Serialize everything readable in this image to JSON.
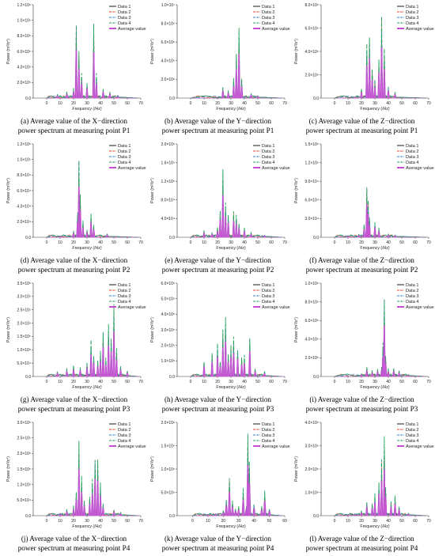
{
  "colors": {
    "data1": "#1a1a1a",
    "data2": "#e8432e",
    "data3": "#2f7fd3",
    "data4": "#1fa35a",
    "average": "#c94fd6"
  },
  "legend_labels": [
    "Data 1",
    "Data 2",
    "Data 3",
    "Data 4",
    "Average value"
  ],
  "chart_data": [
    {
      "id": "a",
      "type": "line",
      "caption_line1": "(a) Average value of the X−direction",
      "caption_line2": "power spectrum at measuring point P1",
      "xlabel": "Frequency (/Hz)",
      "ylabel": "Power (m²/s⁴)",
      "xlim": [
        -10,
        70
      ],
      "xticks": [
        "0",
        "10",
        "20",
        "30",
        "40",
        "50",
        "60",
        "70"
      ],
      "ylim": [
        0,
        1200000.0
      ],
      "yticks": [
        0,
        200000.0,
        400000.0,
        600000.0,
        800000.0,
        1000000.0,
        1200000.0
      ],
      "ytick_labels": [
        "0.0",
        "2.0×10⁵",
        "4.0×10⁵",
        "6.0×10⁵",
        "8.0×10⁵",
        "1.0×10⁶",
        "1.2×10⁶"
      ],
      "peaks": [
        [
          8,
          50000.0
        ],
        [
          15,
          80000.0
        ],
        [
          20,
          120000.0
        ],
        [
          22,
          1000000.0
        ],
        [
          24,
          600000.0
        ],
        [
          26,
          300000.0
        ],
        [
          30,
          200000.0
        ],
        [
          35,
          950000.0
        ],
        [
          37,
          300000.0
        ],
        [
          42,
          120000.0
        ],
        [
          47,
          80000.0
        ],
        [
          53,
          40000.0
        ]
      ]
    },
    {
      "id": "b",
      "type": "line",
      "caption_line1": "(b) Average value of the Y−direction",
      "caption_line2": "power spectrum at measuring point P1",
      "xlabel": "Frequency (/Hz)",
      "ylabel": "Power (m²/s⁴)",
      "xlim": [
        -10,
        70
      ],
      "xticks": [
        "0",
        "10",
        "20",
        "30",
        "40",
        "50",
        "60",
        "70"
      ],
      "ylim": [
        0,
        10000000.0
      ],
      "yticks": [
        0,
        2000000.0,
        4000000.0,
        6000000.0,
        8000000.0,
        10000000.0
      ],
      "ytick_labels": [
        "0.0",
        "2.0×10⁶",
        "4.0×10⁶",
        "6.0×10⁶",
        "8.0×10⁶",
        "1.0×10⁷"
      ],
      "peaks": [
        [
          24,
          1200000.0
        ],
        [
          28,
          800000.0
        ],
        [
          32,
          2000000.0
        ],
        [
          34,
          5000000.0
        ],
        [
          36,
          7500000.0
        ],
        [
          38,
          2000000.0
        ],
        [
          45,
          500000.0
        ],
        [
          50,
          300000.0
        ]
      ]
    },
    {
      "id": "c",
      "type": "line",
      "caption_line1": "(c) Average value of the Z−direction",
      "caption_line2": "power spectrum at measuring point P1",
      "xlabel": "Frequency (/Hz)",
      "ylabel": "Power (m²/s⁴)",
      "xlim": [
        -10,
        70
      ],
      "xticks": [
        "0",
        "10",
        "20",
        "30",
        "40",
        "50",
        "60",
        "70"
      ],
      "ylim": [
        0,
        800000.0
      ],
      "yticks": [
        0,
        200000.0,
        400000.0,
        600000.0,
        800000.0
      ],
      "ytick_labels": [
        "0.0",
        "2.0×10⁵",
        "4.0×10⁵",
        "6.0×10⁵",
        "8.0×10⁵"
      ],
      "peaks": [
        [
          15,
          10000.0
        ],
        [
          20,
          80000.0
        ],
        [
          24,
          440000.0
        ],
        [
          26,
          550000.0
        ],
        [
          28,
          250000.0
        ],
        [
          30,
          150000.0
        ],
        [
          33,
          350000.0
        ],
        [
          35,
          700000.0
        ],
        [
          37,
          400000.0
        ],
        [
          40,
          100000.0
        ],
        [
          45,
          50000.0
        ]
      ]
    },
    {
      "id": "d",
      "type": "line",
      "caption_line1": "(d) Average value of the X−direction",
      "caption_line2": "power spectrum at measuring point P2",
      "xlabel": "Frequency (/Hz)",
      "ylabel": "Power (m²/s⁴)",
      "xlim": [
        -10,
        70
      ],
      "xticks": [
        "0",
        "10",
        "20",
        "30",
        "40",
        "50",
        "60",
        "70"
      ],
      "ylim": [
        0,
        120000.0
      ],
      "yticks": [
        0,
        20000.0,
        40000.0,
        60000.0,
        80000.0,
        100000.0,
        120000.0
      ],
      "ytick_labels": [
        "0.0",
        "2.0×10⁴",
        "4.0×10⁴",
        "6.0×10⁴",
        "8.0×10⁴",
        "1.0×10⁵",
        "1.2×10⁵"
      ],
      "peaks": [
        [
          10,
          2000.0
        ],
        [
          20,
          8000.0
        ],
        [
          23,
          30000.0
        ],
        [
          24,
          105000.0
        ],
        [
          25,
          55000.0
        ],
        [
          27,
          20000.0
        ],
        [
          30,
          10000.0
        ],
        [
          33,
          30000.0
        ],
        [
          35,
          15000.0
        ],
        [
          45,
          5000.0
        ]
      ]
    },
    {
      "id": "e",
      "type": "line",
      "caption_line1": "(e) Average value of the Y−direction",
      "caption_line2": "power spectrum at measuring point P2",
      "xlabel": "Frequency (/Hz)",
      "ylabel": "Power (m²/s⁴)",
      "xlim": [
        -10,
        70
      ],
      "xticks": [
        "0",
        "10",
        "20",
        "30",
        "40",
        "50",
        "60",
        "70"
      ],
      "ylim": [
        0,
        200000.0
      ],
      "yticks": [
        0,
        40000.0,
        80000.0,
        120000.0,
        160000.0,
        200000.0
      ],
      "ytick_labels": [
        "0.0",
        "4.0×10⁴",
        "8.0×10⁴",
        "1.2×10⁵",
        "1.6×10⁵",
        "2.0×10⁵"
      ],
      "peaks": [
        [
          10,
          15000.0
        ],
        [
          16,
          10000.0
        ],
        [
          20,
          20000.0
        ],
        [
          22,
          60000.0
        ],
        [
          24,
          145000.0
        ],
        [
          26,
          70000.0
        ],
        [
          28,
          50000.0
        ],
        [
          32,
          55000.0
        ],
        [
          34,
          45000.0
        ],
        [
          36,
          30000.0
        ],
        [
          40,
          20000.0
        ],
        [
          45,
          10000.0
        ],
        [
          55,
          5000.0
        ]
      ]
    },
    {
      "id": "f",
      "type": "line",
      "caption_line1": "(f) Average value of the Z−direction",
      "caption_line2": "power spectrum at measuring point P2",
      "xlabel": "Frequency (/Hz)",
      "ylabel": "Power (m²/s⁴)",
      "xlim": [
        -10,
        70
      ],
      "xticks": [
        "0",
        "10",
        "20",
        "30",
        "40",
        "50",
        "60",
        "70"
      ],
      "ylim": [
        0,
        150000.0
      ],
      "yticks": [
        0,
        30000.0,
        60000.0,
        90000.0,
        120000.0,
        150000.0
      ],
      "ytick_labels": [
        "0.0",
        "3.0×10⁴",
        "6.0×10⁴",
        "9.0×10⁴",
        "1.2×10⁵",
        "1.5×10⁵"
      ],
      "peaks": [
        [
          10,
          3000.0
        ],
        [
          18,
          5000.0
        ],
        [
          22,
          20000.0
        ],
        [
          24,
          85000.0
        ],
        [
          25,
          60000.0
        ],
        [
          26,
          30000.0
        ],
        [
          30,
          25000.0
        ],
        [
          33,
          15000.0
        ],
        [
          40,
          5000.0
        ],
        [
          45,
          4000.0
        ]
      ]
    },
    {
      "id": "g",
      "type": "line",
      "caption_line1": "(g) Average value of the X−direction",
      "caption_line2": "power spectrum at measuring point P3",
      "xlabel": "Frequency (/Hz)",
      "ylabel": "Power (m²/s⁴)",
      "xlim": [
        -10,
        70
      ],
      "xticks": [
        "0",
        "10",
        "20",
        "30",
        "40",
        "50",
        "60",
        "70"
      ],
      "ylim": [
        0,
        350000.0
      ],
      "yticks": [
        0,
        50000.0,
        100000.0,
        150000.0,
        200000.0,
        250000.0,
        300000.0,
        350000.0
      ],
      "ytick_labels": [
        "0.0",
        "5.0×10⁴",
        "1.0×10⁵",
        "1.5×10⁵",
        "2.0×10⁵",
        "2.5×10⁵",
        "3.0×10⁵",
        "3.5×10⁵"
      ],
      "peaks": [
        [
          8,
          20000.0
        ],
        [
          15,
          30000.0
        ],
        [
          20,
          40000.0
        ],
        [
          25,
          35000.0
        ],
        [
          30,
          50000.0
        ],
        [
          33,
          130000.0
        ],
        [
          35,
          80000.0
        ],
        [
          38,
          60000.0
        ],
        [
          40,
          90000.0
        ],
        [
          42,
          175000.0
        ],
        [
          44,
          70000.0
        ],
        [
          46,
          185000.0
        ],
        [
          48,
          150000.0
        ],
        [
          50,
          270000.0
        ],
        [
          52,
          100000.0
        ],
        [
          55,
          40000.0
        ],
        [
          60,
          20000.0
        ]
      ]
    },
    {
      "id": "h",
      "type": "line",
      "caption_line1": "(h) Average value of the Y−direction",
      "caption_line2": "power spectrum at measuring point P3",
      "xlabel": "Frequency (/Hz)",
      "ylabel": "Power (m²/s⁴)",
      "xlim": [
        -10,
        70
      ],
      "xticks": [
        "0",
        "10",
        "20",
        "30",
        "40",
        "50",
        "60",
        "70"
      ],
      "ylim": [
        0,
        600000.0
      ],
      "yticks": [
        0,
        100000.0,
        200000.0,
        300000.0,
        400000.0,
        500000.0,
        600000.0
      ],
      "ytick_labels": [
        "0.0",
        "1.0×10⁵",
        "2.0×10⁵",
        "3.0×10⁵",
        "4.0×10⁵",
        "5.0×10⁵",
        "6.0×10⁵"
      ],
      "peaks": [
        [
          10,
          100000.0
        ],
        [
          16,
          150000.0
        ],
        [
          20,
          200000.0
        ],
        [
          22,
          100000.0
        ],
        [
          24,
          300000.0
        ],
        [
          26,
          360000.0
        ],
        [
          28,
          150000.0
        ],
        [
          30,
          200000.0
        ],
        [
          32,
          240000.0
        ],
        [
          35,
          180000.0
        ],
        [
          38,
          120000.0
        ],
        [
          40,
          130000.0
        ],
        [
          44,
          260000.0
        ],
        [
          48,
          50000.0
        ],
        [
          55,
          30000.0
        ]
      ]
    },
    {
      "id": "i",
      "type": "line",
      "caption_line1": "(i) Average value of the Z−direction",
      "caption_line2": "power spectrum at measuring point P3",
      "xlabel": "Frequency (/Hz)",
      "ylabel": "Power (m²/s⁴)",
      "xlim": [
        -10,
        70
      ],
      "xticks": [
        "0",
        "10",
        "20",
        "30",
        "40",
        "50",
        "60",
        "70"
      ],
      "ylim": [
        0,
        1000000.0
      ],
      "yticks": [
        0,
        200000.0,
        400000.0,
        600000.0,
        800000.0,
        1000000.0
      ],
      "ytick_labels": [
        "0.0",
        "2.0×10⁵",
        "4.0×10⁵",
        "6.0×10⁵",
        "8.0×10⁵",
        "1.0×10⁶"
      ],
      "peaks": [
        [
          20,
          30000.0
        ],
        [
          24,
          100000.0
        ],
        [
          28,
          60000.0
        ],
        [
          32,
          80000.0
        ],
        [
          35,
          100000.0
        ],
        [
          36,
          340000.0
        ],
        [
          37,
          880000.0
        ],
        [
          38,
          220000.0
        ],
        [
          40,
          80000.0
        ],
        [
          44,
          90000.0
        ],
        [
          48,
          60000.0
        ],
        [
          55,
          20000.0
        ]
      ]
    },
    {
      "id": "j",
      "type": "line",
      "caption_line1": "(j) Average value of the X−direction",
      "caption_line2": "power spectrum at measuring point P4",
      "xlabel": "Frequency (/Hz)",
      "ylabel": "Power (m²/s⁴)",
      "xlim": [
        -10,
        70
      ],
      "xticks": [
        "0",
        "10",
        "20",
        "30",
        "40",
        "50",
        "60",
        "70"
      ],
      "ylim": [
        0,
        300000.0
      ],
      "yticks": [
        0,
        50000.0,
        100000.0,
        150000.0,
        200000.0,
        250000.0,
        300000.0
      ],
      "ytick_labels": [
        "0.0",
        "5.0×10⁴",
        "1.0×10⁵",
        "1.5×10⁵",
        "2.0×10⁵",
        "2.5×10⁵",
        "3.0×10⁵"
      ],
      "peaks": [
        [
          10,
          10000.0
        ],
        [
          15,
          20000.0
        ],
        [
          20,
          30000.0
        ],
        [
          22,
          80000.0
        ],
        [
          24,
          240000.0
        ],
        [
          26,
          120000.0
        ],
        [
          28,
          50000.0
        ],
        [
          32,
          60000.0
        ],
        [
          34,
          110000.0
        ],
        [
          36,
          190000.0
        ],
        [
          38,
          180000.0
        ],
        [
          40,
          100000.0
        ],
        [
          42,
          40000.0
        ],
        [
          50,
          20000.0
        ],
        [
          55,
          10000.0
        ]
      ]
    },
    {
      "id": "k",
      "type": "line",
      "caption_line1": "(k) Average value of the Y−direction",
      "caption_line2": "power spectrum at measuring point P4",
      "xlabel": "Frequency (/Hz)",
      "ylabel": "Power (m²/s⁴)",
      "xlim": [
        -10,
        60
      ],
      "xticks": [
        "0",
        "10",
        "20",
        "30",
        "40",
        "50",
        "60"
      ],
      "ylim": [
        0,
        2000000.0
      ],
      "yticks": [
        0,
        500000.0,
        1000000.0,
        1500000.0,
        2000000.0
      ],
      "ytick_labels": [
        "0.0",
        "5.0×10⁵",
        "1.0×10⁶",
        "1.5×10⁶",
        "2.0×10⁶"
      ],
      "peaks": [
        [
          10,
          30000.0
        ],
        [
          15,
          50000.0
        ],
        [
          20,
          100000.0
        ],
        [
          22,
          350000.0
        ],
        [
          24,
          800000.0
        ],
        [
          26,
          300000.0
        ],
        [
          28,
          150000.0
        ],
        [
          30,
          200000.0
        ],
        [
          33,
          550000.0
        ],
        [
          35,
          200000.0
        ],
        [
          36,
          1750000.0
        ],
        [
          37,
          1100000.0
        ],
        [
          40,
          250000.0
        ],
        [
          45,
          200000.0
        ],
        [
          47,
          500000.0
        ],
        [
          50,
          150000.0
        ]
      ]
    },
    {
      "id": "l",
      "type": "line",
      "caption_line1": "(l) Average value of the Z−direction",
      "caption_line2": "power spectrum at measuring point P4",
      "xlabel": "Frequency (/Hz)",
      "ylabel": "Power (m²/s⁴)",
      "xlim": [
        -10,
        70
      ],
      "xticks": [
        "0",
        "10",
        "20",
        "30",
        "40",
        "50",
        "60",
        "70"
      ],
      "ylim": [
        0,
        400000.0
      ],
      "yticks": [
        0,
        100000.0,
        200000.0,
        300000.0,
        400000.0
      ],
      "ytick_labels": [
        "0.0",
        "1.0×10⁵",
        "2.0×10⁵",
        "3.0×10⁵",
        "4.0×10⁵"
      ],
      "peaks": [
        [
          10,
          5000.0
        ],
        [
          15,
          8000.0
        ],
        [
          20,
          20000.0
        ],
        [
          24,
          60000.0
        ],
        [
          28,
          50000.0
        ],
        [
          30,
          90000.0
        ],
        [
          33,
          150000.0
        ],
        [
          35,
          240000.0
        ],
        [
          37,
          320000.0
        ],
        [
          38,
          130000.0
        ],
        [
          42,
          60000.0
        ],
        [
          45,
          80000.0
        ],
        [
          48,
          40000.0
        ],
        [
          55,
          10000.0
        ]
      ]
    }
  ]
}
